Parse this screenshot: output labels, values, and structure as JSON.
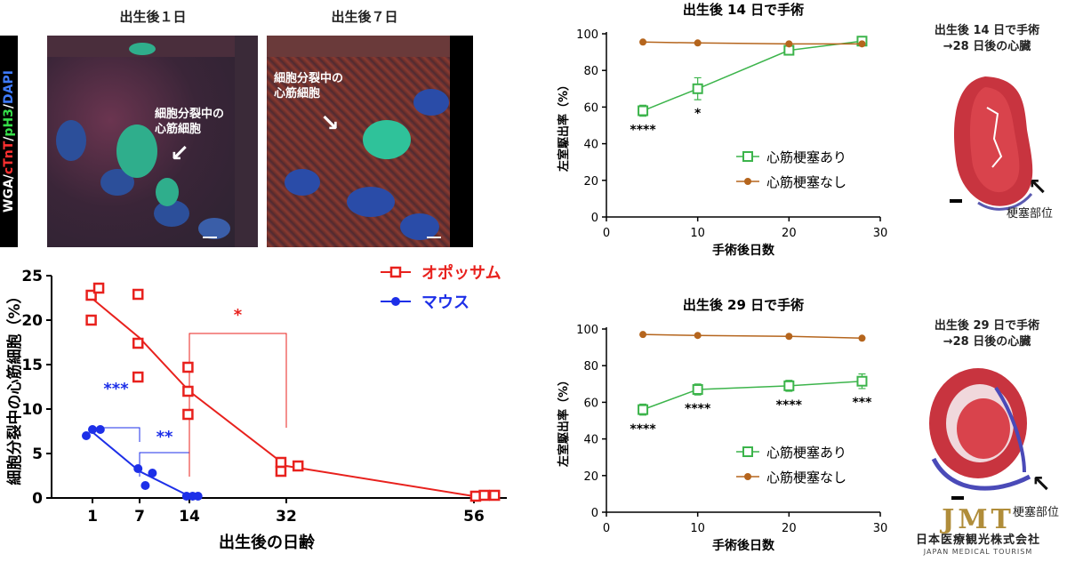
{
  "micrographs": {
    "stain_label": {
      "wga": "WGA/",
      "ctnt": "cTnT",
      "sep": "/",
      "ph3": "pH3",
      "sep2": "/",
      "dapi": "DAPI"
    },
    "panels": [
      {
        "title": "出生後１日",
        "annotation_line1": "細胞分裂中の",
        "annotation_line2": "心筋細胞"
      },
      {
        "title": "出生後７日",
        "annotation_line1": "細胞分裂中の",
        "annotation_line2": "心筋細胞"
      }
    ]
  },
  "chart_data": [
    {
      "type": "scatter",
      "ylabel": "細胞分裂中の心筋細胞（%）",
      "xlabel": "出生後の日齢",
      "xticks": [
        "1",
        "7",
        "14",
        "32",
        "56"
      ],
      "ylim": [
        0,
        25
      ],
      "yticks": [
        0,
        5,
        10,
        15,
        20,
        25
      ],
      "legend_position": "top-right",
      "series": [
        {
          "name": "オポッサム",
          "color": "#e8211d",
          "marker": "open-square",
          "points": [
            [
              0.8,
              22.8
            ],
            [
              1.8,
              23.6
            ],
            [
              0.8,
              20.0
            ],
            [
              6.8,
              22.9
            ],
            [
              6.8,
              17.4
            ],
            [
              6.8,
              13.6
            ],
            [
              13.8,
              14.7
            ],
            [
              13.8,
              12.0
            ],
            [
              13.8,
              9.4
            ],
            [
              31.0,
              4.0
            ],
            [
              31.0,
              3.0
            ],
            [
              33.5,
              3.6
            ],
            [
              56.2,
              0.2
            ],
            [
              57.2,
              0.3
            ],
            [
              58.4,
              0.3
            ]
          ],
          "trend": [
            [
              1,
              22.4
            ],
            [
              7,
              18.0
            ],
            [
              14,
              12.0
            ],
            [
              32,
              3.6
            ],
            [
              56,
              0.2
            ]
          ]
        },
        {
          "name": "マウス",
          "color": "#1d2fe8",
          "marker": "filled-circle",
          "points": [
            [
              0.0,
              7.0
            ],
            [
              1.0,
              7.7
            ],
            [
              2.0,
              7.7
            ],
            [
              6.8,
              3.3
            ],
            [
              7.8,
              1.4
            ],
            [
              8.8,
              2.8
            ],
            [
              13.6,
              0.2
            ],
            [
              14.6,
              0.2
            ],
            [
              15.6,
              0.2
            ]
          ],
          "trend": [
            [
              1,
              7.4
            ],
            [
              7,
              3.0
            ],
            [
              14,
              0.2
            ]
          ]
        }
      ],
      "annotations": [
        {
          "text": "***",
          "color": "#1d2fe8",
          "between": [
            "1",
            "7"
          ]
        },
        {
          "text": "**",
          "color": "#1d2fe8",
          "between": [
            "7",
            "14"
          ]
        },
        {
          "text": "*",
          "color": "#e8211d",
          "between": [
            "14",
            "32"
          ]
        }
      ]
    },
    {
      "type": "line",
      "title": "出生後 14 日で手術",
      "xlabel": "手術後日数",
      "ylabel": "左室駆出率（%）",
      "xlim": [
        0,
        30
      ],
      "xticks": [
        0,
        10,
        20,
        30
      ],
      "ylim": [
        0,
        100
      ],
      "yticks": [
        0,
        20,
        40,
        60,
        80,
        100
      ],
      "legend_position": "bottom-right",
      "series": [
        {
          "name": "心筋梗塞あり",
          "color": "#3cb44b",
          "marker": "open-square",
          "x": [
            4,
            10,
            20,
            28
          ],
          "y": [
            58,
            70,
            91,
            96
          ],
          "err": [
            3,
            6,
            2,
            2
          ]
        },
        {
          "name": "心筋梗塞なし",
          "color": "#b5651d",
          "marker": "filled-circle",
          "x": [
            4,
            10,
            20,
            28
          ],
          "y": [
            95.5,
            95,
            94.5,
            94.5
          ],
          "err": [
            0,
            0,
            0,
            0
          ]
        }
      ],
      "significance": [
        {
          "x": 4,
          "text": "****"
        },
        {
          "x": 10,
          "text": "*"
        }
      ]
    },
    {
      "type": "line",
      "title": "出生後 29 日で手術",
      "xlabel": "手術後日数",
      "ylabel": "左室駆出率（%）",
      "xlim": [
        0,
        30
      ],
      "xticks": [
        0,
        10,
        20,
        30
      ],
      "ylim": [
        0,
        100
      ],
      "yticks": [
        0,
        20,
        40,
        60,
        80,
        100
      ],
      "legend_position": "bottom-right",
      "series": [
        {
          "name": "心筋梗塞あり",
          "color": "#3cb44b",
          "marker": "open-square",
          "x": [
            4,
            10,
            20,
            28
          ],
          "y": [
            56,
            67,
            69,
            71.5
          ],
          "err": [
            3,
            3,
            3,
            4
          ]
        },
        {
          "name": "心筋梗塞なし",
          "color": "#b5651d",
          "marker": "filled-circle",
          "x": [
            4,
            10,
            20,
            28
          ],
          "y": [
            97,
            96.5,
            96,
            95
          ],
          "err": [
            0,
            0,
            0,
            0
          ]
        }
      ],
      "significance": [
        {
          "x": 4,
          "text": "****"
        },
        {
          "x": 10,
          "text": "****"
        },
        {
          "x": 20,
          "text": "****"
        },
        {
          "x": 28,
          "text": "***"
        }
      ]
    }
  ],
  "hearts": [
    {
      "title_line1": "出生後 14 日で手術",
      "title_line2": "→28 日後の心臓",
      "infarct_label": "梗塞部位"
    },
    {
      "title_line1": "出生後 29 日で手術",
      "title_line2": "→28 日後の心臓",
      "infarct_label": "梗塞部位"
    }
  ],
  "logo": {
    "mark": "JMT",
    "company": "日本医療観光株式会社",
    "english": "JAPAN MEDICAL TOURISM"
  }
}
